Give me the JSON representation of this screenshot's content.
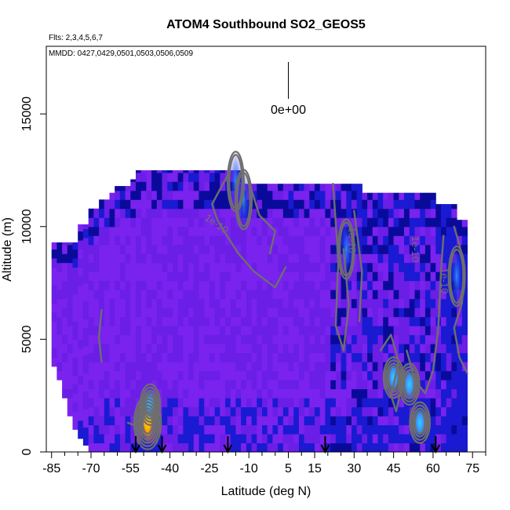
{
  "chart_data": {
    "type": "heatmap",
    "title": "ATOM4 Southbound SO2_GEOS5",
    "subtitle_flights": "Flts: 2,3,4,5,6,7",
    "subtitle_dates": "MMDD: 0427,0429,0501,0503,0506,0509",
    "xlabel": "Latitude (deg N)",
    "ylabel": "Altitude (m)",
    "xlim": [
      -87,
      80
    ],
    "ylim": [
      0,
      18000
    ],
    "xticks": [
      -85,
      -70,
      -55,
      -40,
      -25,
      -10,
      5,
      15,
      30,
      45,
      60,
      75
    ],
    "xtick_labels": [
      "-85",
      "-70",
      "-55",
      "-40",
      "-25",
      "-10",
      "5",
      "15",
      "30",
      "45",
      "60",
      "75"
    ],
    "xminor": [
      -80,
      -75,
      -65,
      -60,
      -50,
      -45,
      -35,
      -30,
      -20,
      -15,
      -5,
      0,
      10,
      20,
      25,
      35,
      40,
      50,
      55,
      65,
      70,
      80
    ],
    "yticks": [
      0,
      5000,
      10000,
      15000
    ],
    "ytick_labels": [
      "0",
      "5000",
      "10000",
      "15000"
    ],
    "legend_value": "0e+00",
    "legend_x": 5,
    "contour_labels": [
      "1e-10",
      "1e-10",
      "1e-10",
      "1e-10"
    ],
    "contour_label_positions": [
      [
        -23,
        10000
      ],
      [
        28,
        9400
      ],
      [
        52,
        9000
      ],
      [
        63,
        7600
      ]
    ],
    "flight_markers_lat": [
      -53,
      -43,
      -18,
      19,
      61
    ],
    "column_top_altitude": [
      [
        -84,
        9300
      ],
      [
        -82,
        9300
      ],
      [
        -80,
        9300
      ],
      [
        -78,
        9300
      ],
      [
        -76,
        9300
      ],
      [
        -74,
        10100
      ],
      [
        -72,
        10100
      ],
      [
        -70,
        10800
      ],
      [
        -68,
        10800
      ],
      [
        -66,
        11200
      ],
      [
        -64,
        11200
      ],
      [
        -62,
        11500
      ],
      [
        -60,
        11800
      ],
      [
        -58,
        11800
      ],
      [
        -56,
        11800
      ],
      [
        -54,
        12100
      ],
      [
        -52,
        12500
      ],
      [
        -50,
        12500
      ],
      [
        -48,
        12500
      ],
      [
        -46,
        12500
      ],
      [
        -44,
        12500
      ],
      [
        -42,
        12500
      ],
      [
        -40,
        12500
      ],
      [
        -38,
        12500
      ],
      [
        -36,
        12500
      ],
      [
        -34,
        12500
      ],
      [
        -32,
        12500
      ],
      [
        -30,
        12500
      ],
      [
        -28,
        12500
      ],
      [
        -26,
        12500
      ],
      [
        -24,
        12500
      ],
      [
        -22,
        12500
      ],
      [
        -20,
        12500
      ],
      [
        -18,
        12500
      ],
      [
        -16,
        12500
      ],
      [
        -14,
        12500
      ],
      [
        -12,
        11900
      ],
      [
        -10,
        11900
      ],
      [
        -8,
        11900
      ],
      [
        -6,
        11900
      ],
      [
        -4,
        11900
      ],
      [
        -2,
        11900
      ],
      [
        0,
        11900
      ],
      [
        2,
        11900
      ],
      [
        4,
        11900
      ],
      [
        6,
        11900
      ],
      [
        8,
        11900
      ],
      [
        10,
        11900
      ],
      [
        12,
        11900
      ],
      [
        14,
        11900
      ],
      [
        16,
        11900
      ],
      [
        18,
        11900
      ],
      [
        20,
        11900
      ],
      [
        22,
        11900
      ],
      [
        24,
        11900
      ],
      [
        26,
        11900
      ],
      [
        28,
        11900
      ],
      [
        30,
        11900
      ],
      [
        32,
        11900
      ],
      [
        34,
        11500
      ],
      [
        36,
        11500
      ],
      [
        38,
        11500
      ],
      [
        40,
        11500
      ],
      [
        42,
        11500
      ],
      [
        44,
        11500
      ],
      [
        46,
        11500
      ],
      [
        48,
        11500
      ],
      [
        50,
        11500
      ],
      [
        52,
        11500
      ],
      [
        54,
        11500
      ],
      [
        56,
        11500
      ],
      [
        58,
        11500
      ],
      [
        60,
        11500
      ],
      [
        62,
        11000
      ],
      [
        64,
        11000
      ],
      [
        66,
        11000
      ],
      [
        68,
        11000
      ],
      [
        70,
        10300
      ],
      [
        72,
        10300
      ]
    ],
    "column_bottom_altitude": [
      [
        -84,
        3800
      ],
      [
        -82,
        3200
      ],
      [
        -80,
        2400
      ],
      [
        -78,
        1600
      ],
      [
        -76,
        1000
      ],
      [
        -74,
        600
      ],
      [
        -72,
        300
      ]
    ],
    "hotspots": [
      {
        "lat": -48.5,
        "alt": 1300,
        "level": "high"
      },
      {
        "lat": -47.5,
        "alt": 2100,
        "level": "mid"
      },
      {
        "lat": 55,
        "alt": 1300,
        "level": "mid"
      },
      {
        "lat": 45,
        "alt": 3300,
        "level": "mid"
      },
      {
        "lat": 51,
        "alt": 3000,
        "level": "mid"
      },
      {
        "lat": 27,
        "alt": 9000,
        "level": "low"
      },
      {
        "lat": -12,
        "alt": 11200,
        "level": "low"
      },
      {
        "lat": 69,
        "alt": 7800,
        "level": "low"
      },
      {
        "lat": -15,
        "alt": 12000,
        "level": "low"
      }
    ],
    "colors": {
      "background_field": "#7a22ee",
      "field_purple_2": "#6a1ee6",
      "field_blue": "#1a1ad2",
      "field_navy": "#0a0a9a",
      "field_light_blue": "#2f8cff",
      "field_cyan": "#40c8ff",
      "hot_yellow": "#ffe000",
      "hot_orange": "#ffa000",
      "contour": "#6e6e6e",
      "axis": "#000000"
    },
    "grid": false
  }
}
